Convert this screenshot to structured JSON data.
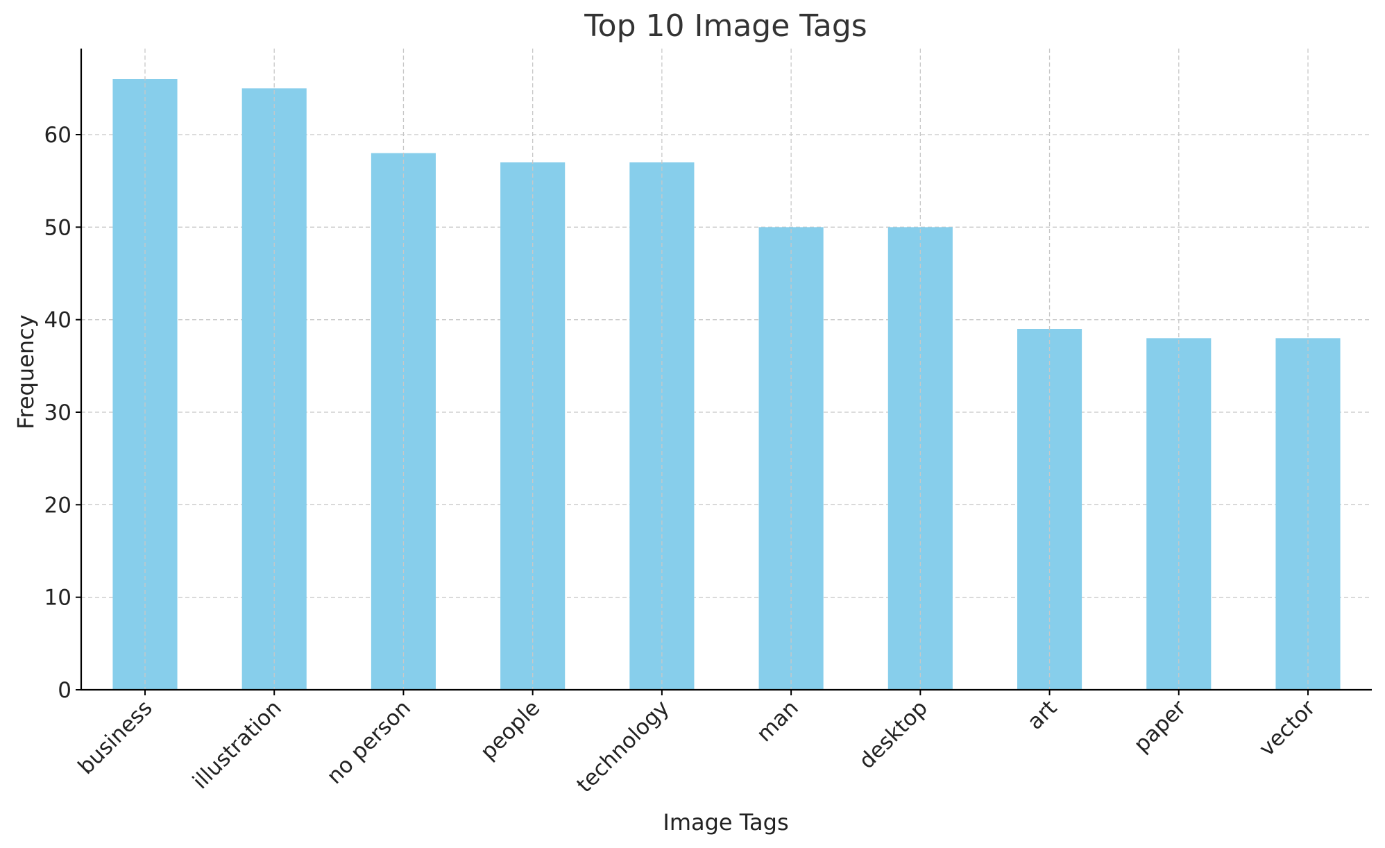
{
  "chart_data": {
    "type": "bar",
    "title": "Top 10 Image Tags",
    "xlabel": "Image Tags",
    "ylabel": "Frequency",
    "categories": [
      "business",
      "illustration",
      "no person",
      "people",
      "technology",
      "man",
      "desktop",
      "art",
      "paper",
      "vector"
    ],
    "values": [
      66,
      65,
      58,
      57,
      57,
      50,
      50,
      39,
      38,
      38
    ],
    "yticks": [
      "0",
      "10",
      "20",
      "30",
      "40",
      "50",
      "60"
    ],
    "ylim": [
      0,
      69.3
    ],
    "grid": true,
    "bar_color": "#87CEEB",
    "legend": false
  }
}
